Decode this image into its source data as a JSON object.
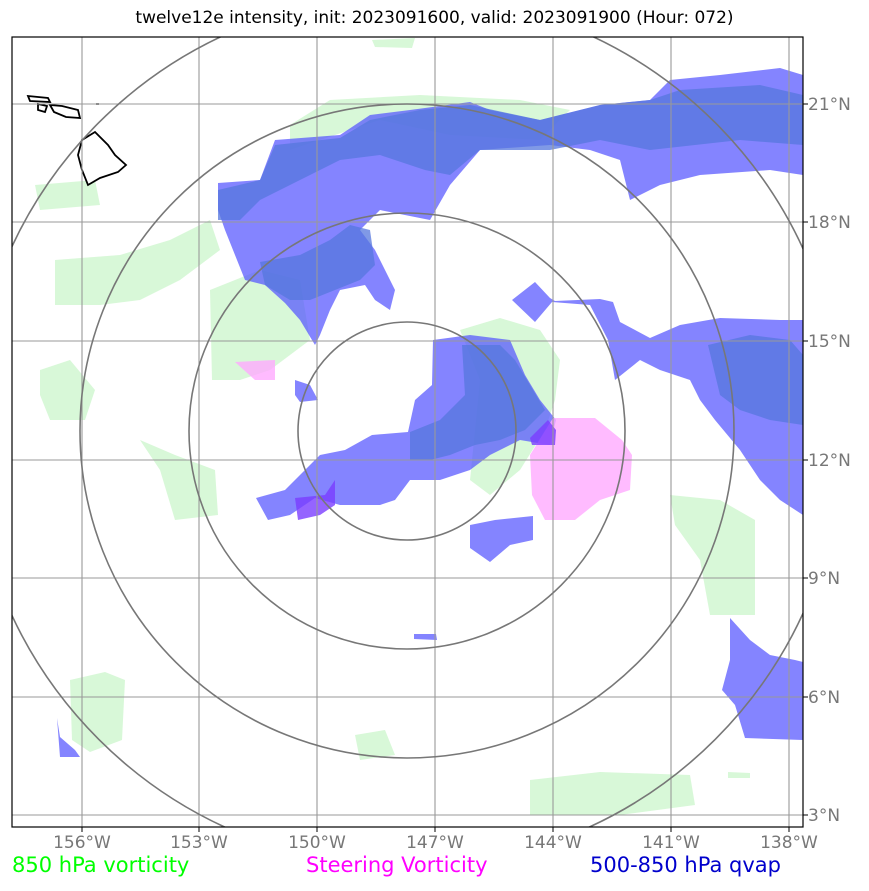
{
  "title": "twelve12e intensity, init: 2023091600, valid: 2023091900 (Hour: 072)",
  "map": {
    "lon_labels": [
      "156°W",
      "153°W",
      "150°W",
      "147°W",
      "144°W",
      "141°W",
      "138°W"
    ],
    "lat_labels": [
      "21°N",
      "18°N",
      "15°N",
      "12°N",
      "9°N",
      "6°N",
      "3°N"
    ],
    "center_lon": -147.7,
    "center_lat": 12.8,
    "range_ring_count": 4
  },
  "legend": {
    "vorticity_850": "850 hPa vorticity",
    "steering_vorticity": "Steering Vorticity",
    "qvap": "500-850 hPa qvap"
  },
  "colors": {
    "vorticity_850": "#00ff00",
    "steering_vorticity": "#ff00ff",
    "qvap": "#0000cc"
  }
}
